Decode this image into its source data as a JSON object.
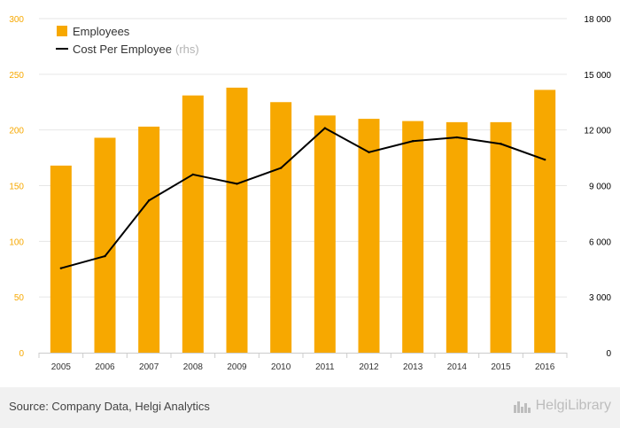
{
  "chart_data": {
    "type": "bar",
    "categories": [
      "2005",
      "2006",
      "2007",
      "2008",
      "2009",
      "2010",
      "2011",
      "2012",
      "2013",
      "2014",
      "2015",
      "2016"
    ],
    "series": [
      {
        "name": "Employees",
        "type": "bar",
        "axis": "left",
        "values": [
          168,
          193,
          203,
          231,
          238,
          225,
          213,
          210,
          208,
          207,
          207,
          236
        ]
      },
      {
        "name": "Cost Per Employee",
        "type": "line",
        "axis": "right",
        "values": [
          4550,
          5200,
          8200,
          9600,
          9100,
          9950,
          12100,
          10800,
          11400,
          11600,
          11250,
          10400
        ]
      }
    ],
    "legend": [
      {
        "label": "Employees",
        "suffix": ""
      },
      {
        "label": "Cost Per Employee",
        "suffix": "(rhs)"
      }
    ],
    "y_left": {
      "min": 0,
      "max": 300,
      "ticks": [
        "0",
        "50",
        "100",
        "150",
        "200",
        "250",
        "300"
      ]
    },
    "y_right": {
      "min": 0,
      "max": 18000,
      "ticks": [
        "0",
        "3 000",
        "6 000",
        "9 000",
        "12 000",
        "15 000",
        "18 000"
      ]
    },
    "grid": true,
    "legend_position": "top-left",
    "colors": {
      "bar": "#f7a800",
      "line": "#000000",
      "left_axis_text": "#f7a800",
      "right_axis_text": "#000000",
      "grid": "#e6e6e6"
    }
  },
  "footer": {
    "source": "Source: Company Data, Helgi Analytics",
    "logo_text": "HelgiLibrary",
    "logo_icon": "city-skyline-icon"
  }
}
